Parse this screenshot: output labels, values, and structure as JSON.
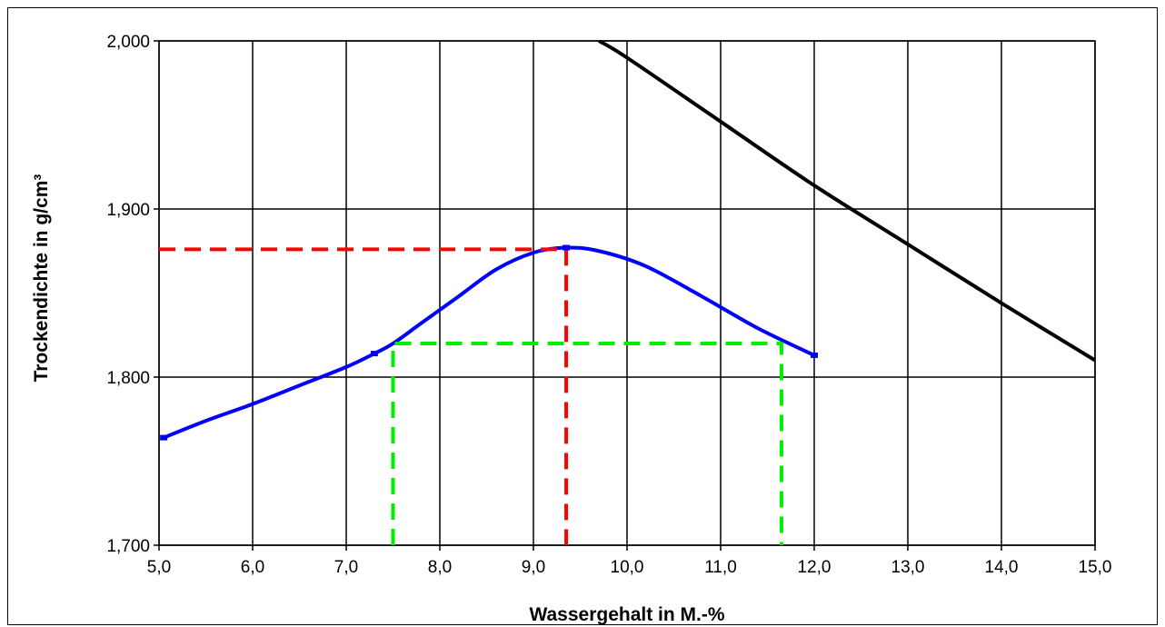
{
  "chart_data": {
    "type": "line",
    "xlabel": "Wassergehalt in M.-%",
    "ylabel": "Trockendichte in g/cm³",
    "xlim": [
      5.0,
      15.0
    ],
    "ylim": [
      1.7,
      2.0
    ],
    "x_ticks": [
      "5,0",
      "6,0",
      "7,0",
      "8,0",
      "9,0",
      "10,0",
      "11,0",
      "12,0",
      "13,0",
      "14,0",
      "15,0"
    ],
    "y_ticks": [
      "1,700",
      "1,800",
      "1,900",
      "2,000"
    ],
    "grid": true,
    "series": [
      {
        "color": "#0000ff",
        "style": "solid",
        "x": [
          5.05,
          5.5,
          6.0,
          6.5,
          7.0,
          7.3,
          7.5,
          7.8,
          8.2,
          8.6,
          9.0,
          9.35,
          9.7,
          10.2,
          10.8,
          11.4,
          12.0
        ],
        "y": [
          1.764,
          1.774,
          1.784,
          1.795,
          1.806,
          1.814,
          1.82,
          1.832,
          1.848,
          1.864,
          1.874,
          1.877,
          1.875,
          1.866,
          1.848,
          1.829,
          1.813
        ]
      },
      {
        "color": "#000000",
        "style": "solid",
        "x": [
          9.7,
          10.0,
          11.0,
          12.0,
          13.0,
          14.0,
          15.0
        ],
        "y": [
          2.0,
          1.99,
          1.952,
          1.914,
          1.879,
          1.844,
          1.81
        ]
      },
      {
        "color": "#ff0000",
        "style": "dashed",
        "x": [
          5.0,
          9.35,
          9.35
        ],
        "y": [
          1.876,
          1.876,
          1.7
        ]
      },
      {
        "color": "#00ee00",
        "style": "dashed",
        "x": [
          7.5,
          7.5,
          11.65,
          11.65
        ],
        "y": [
          1.7,
          1.82,
          1.82,
          1.7
        ]
      }
    ]
  }
}
